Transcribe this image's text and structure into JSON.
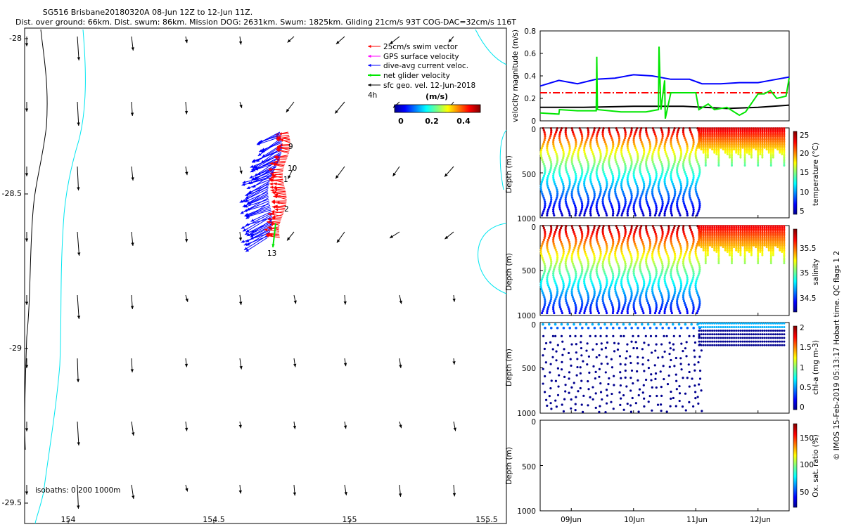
{
  "header": {
    "title": "SG516 Brisbane20180320A 08-Jun 12Z to 12-Jun 11Z.",
    "subtitle": "Dist. over ground: 66km. Dist. swum: 86km. Mission DOG: 2631km. Swum: 1825km. Gliding 21cm/s 93T COG-DAC=32cm/s 116T"
  },
  "colors": {
    "coast": "#00e6f0",
    "swim": "#ff0000",
    "gps": "#ff00ff",
    "dac": "#0000ff",
    "net": "#00e600",
    "geo": "#000000"
  },
  "legend": {
    "items": [
      {
        "label": "25cm/s swim vector",
        "color": "#ff0000"
      },
      {
        "label": "GPS surface velocity",
        "color": "#ff00ff"
      },
      {
        "label": "dive-avg current veloc.",
        "color": "#0000ff"
      },
      {
        "label": "net glider velocity",
        "color": "#00e600"
      },
      {
        "label": "sfc geo. vel. 12-Jun-2018",
        "color": "#000000"
      }
    ],
    "interval": "4h",
    "speed_unit": "(m/s)",
    "speed_ticks": [
      "0",
      "0.2",
      "0.4"
    ]
  },
  "map": {
    "x_ticks": [
      "154",
      "154.5",
      "155",
      "155.5"
    ],
    "y_ticks": [
      "-28",
      "-28.5",
      "-29",
      "-29.5"
    ],
    "isobaths": "isobaths: 0   200  1000m",
    "dive_labels": [
      "9",
      "10",
      "1",
      "2",
      "13"
    ]
  },
  "chart_data": [
    {
      "type": "line",
      "title": "",
      "xlabel": "",
      "ylabel": "velocity magnitude (m/s)",
      "xlim": [
        8.5,
        12.5
      ],
      "ylim": [
        0,
        0.8
      ],
      "y_ticks": [
        "0",
        "0.2",
        "0.4",
        "0.6",
        "0.8"
      ],
      "series": [
        {
          "name": "dive-avg current",
          "color": "#0000ff",
          "x": [
            8.5,
            8.8,
            9.1,
            9.4,
            9.7,
            10.0,
            10.3,
            10.6,
            10.9,
            11.1,
            11.4,
            11.7,
            12.0,
            12.3,
            12.5
          ],
          "y": [
            0.31,
            0.36,
            0.33,
            0.37,
            0.38,
            0.41,
            0.4,
            0.37,
            0.37,
            0.33,
            0.33,
            0.34,
            0.34,
            0.37,
            0.39
          ]
        },
        {
          "name": "swim speed",
          "color": "#ff0000",
          "x": [
            8.5,
            12.5
          ],
          "y": [
            0.25,
            0.25
          ]
        },
        {
          "name": "geo velocity",
          "color": "#000000",
          "x": [
            8.5,
            9.2,
            10.0,
            10.8,
            11.5,
            12.0,
            12.5
          ],
          "y": [
            0.12,
            0.12,
            0.13,
            0.13,
            0.11,
            0.12,
            0.14
          ]
        },
        {
          "name": "net glider velocity",
          "color": "#00e600",
          "x": [
            8.5,
            8.8,
            8.81,
            9.1,
            9.4,
            9.41,
            9.42,
            9.8,
            10.2,
            10.4,
            10.41,
            10.44,
            10.5,
            10.51,
            10.6,
            10.9,
            11.0,
            11.05,
            11.2,
            11.3,
            11.5,
            11.7,
            11.8,
            12.0,
            12.1,
            12.2,
            12.3,
            12.45,
            12.5
          ],
          "y": [
            0.07,
            0.06,
            0.1,
            0.09,
            0.09,
            0.57,
            0.1,
            0.08,
            0.08,
            0.1,
            0.66,
            0.1,
            0.36,
            0.02,
            0.25,
            0.25,
            0.25,
            0.1,
            0.15,
            0.1,
            0.12,
            0.05,
            0.08,
            0.24,
            0.24,
            0.27,
            0.2,
            0.22,
            0.38
          ]
        }
      ]
    },
    {
      "type": "scatter",
      "ylabel": "Depth (m)",
      "cbar_label": "temperature (°C)",
      "y_ticks": [
        "0",
        "500",
        "1000"
      ],
      "cbar_ticks": [
        "5",
        "10",
        "15",
        "20",
        "25"
      ],
      "clim": [
        4,
        26
      ],
      "ylim": [
        1000,
        0
      ]
    },
    {
      "type": "scatter",
      "ylabel": "Depth (m)",
      "cbar_label": "salinity",
      "y_ticks": [
        "0",
        "500",
        "1000"
      ],
      "cbar_ticks": [
        "34.5",
        "35",
        "35.5"
      ],
      "clim": [
        34.3,
        35.8
      ],
      "ylim": [
        1000,
        0
      ]
    },
    {
      "type": "scatter",
      "ylabel": "Depth (m)",
      "cbar_label": "chl-a (mg m-3)",
      "y_ticks": [
        "0",
        "500",
        "1000"
      ],
      "cbar_ticks": [
        "0",
        "0.5",
        "1",
        "1.5",
        "2"
      ],
      "clim": [
        0,
        2
      ],
      "ylim": [
        1000,
        0
      ]
    },
    {
      "type": "scatter",
      "ylabel": "Depth (m)",
      "cbar_label": "Ox. sat. ratio (%)",
      "y_ticks": [
        "0",
        "500",
        "1000"
      ],
      "cbar_ticks": [
        "50",
        "100",
        "150"
      ],
      "clim": [
        20,
        175
      ],
      "ylim": [
        1000,
        0
      ]
    }
  ],
  "time_axis": {
    "ticks": [
      "09Jun",
      "10Jun",
      "11Jun",
      "12Jun"
    ]
  },
  "footer": {
    "credit": "© IMOS 15-Feb-2019 05:13:17 Hobart time. QC flags 1  2"
  }
}
